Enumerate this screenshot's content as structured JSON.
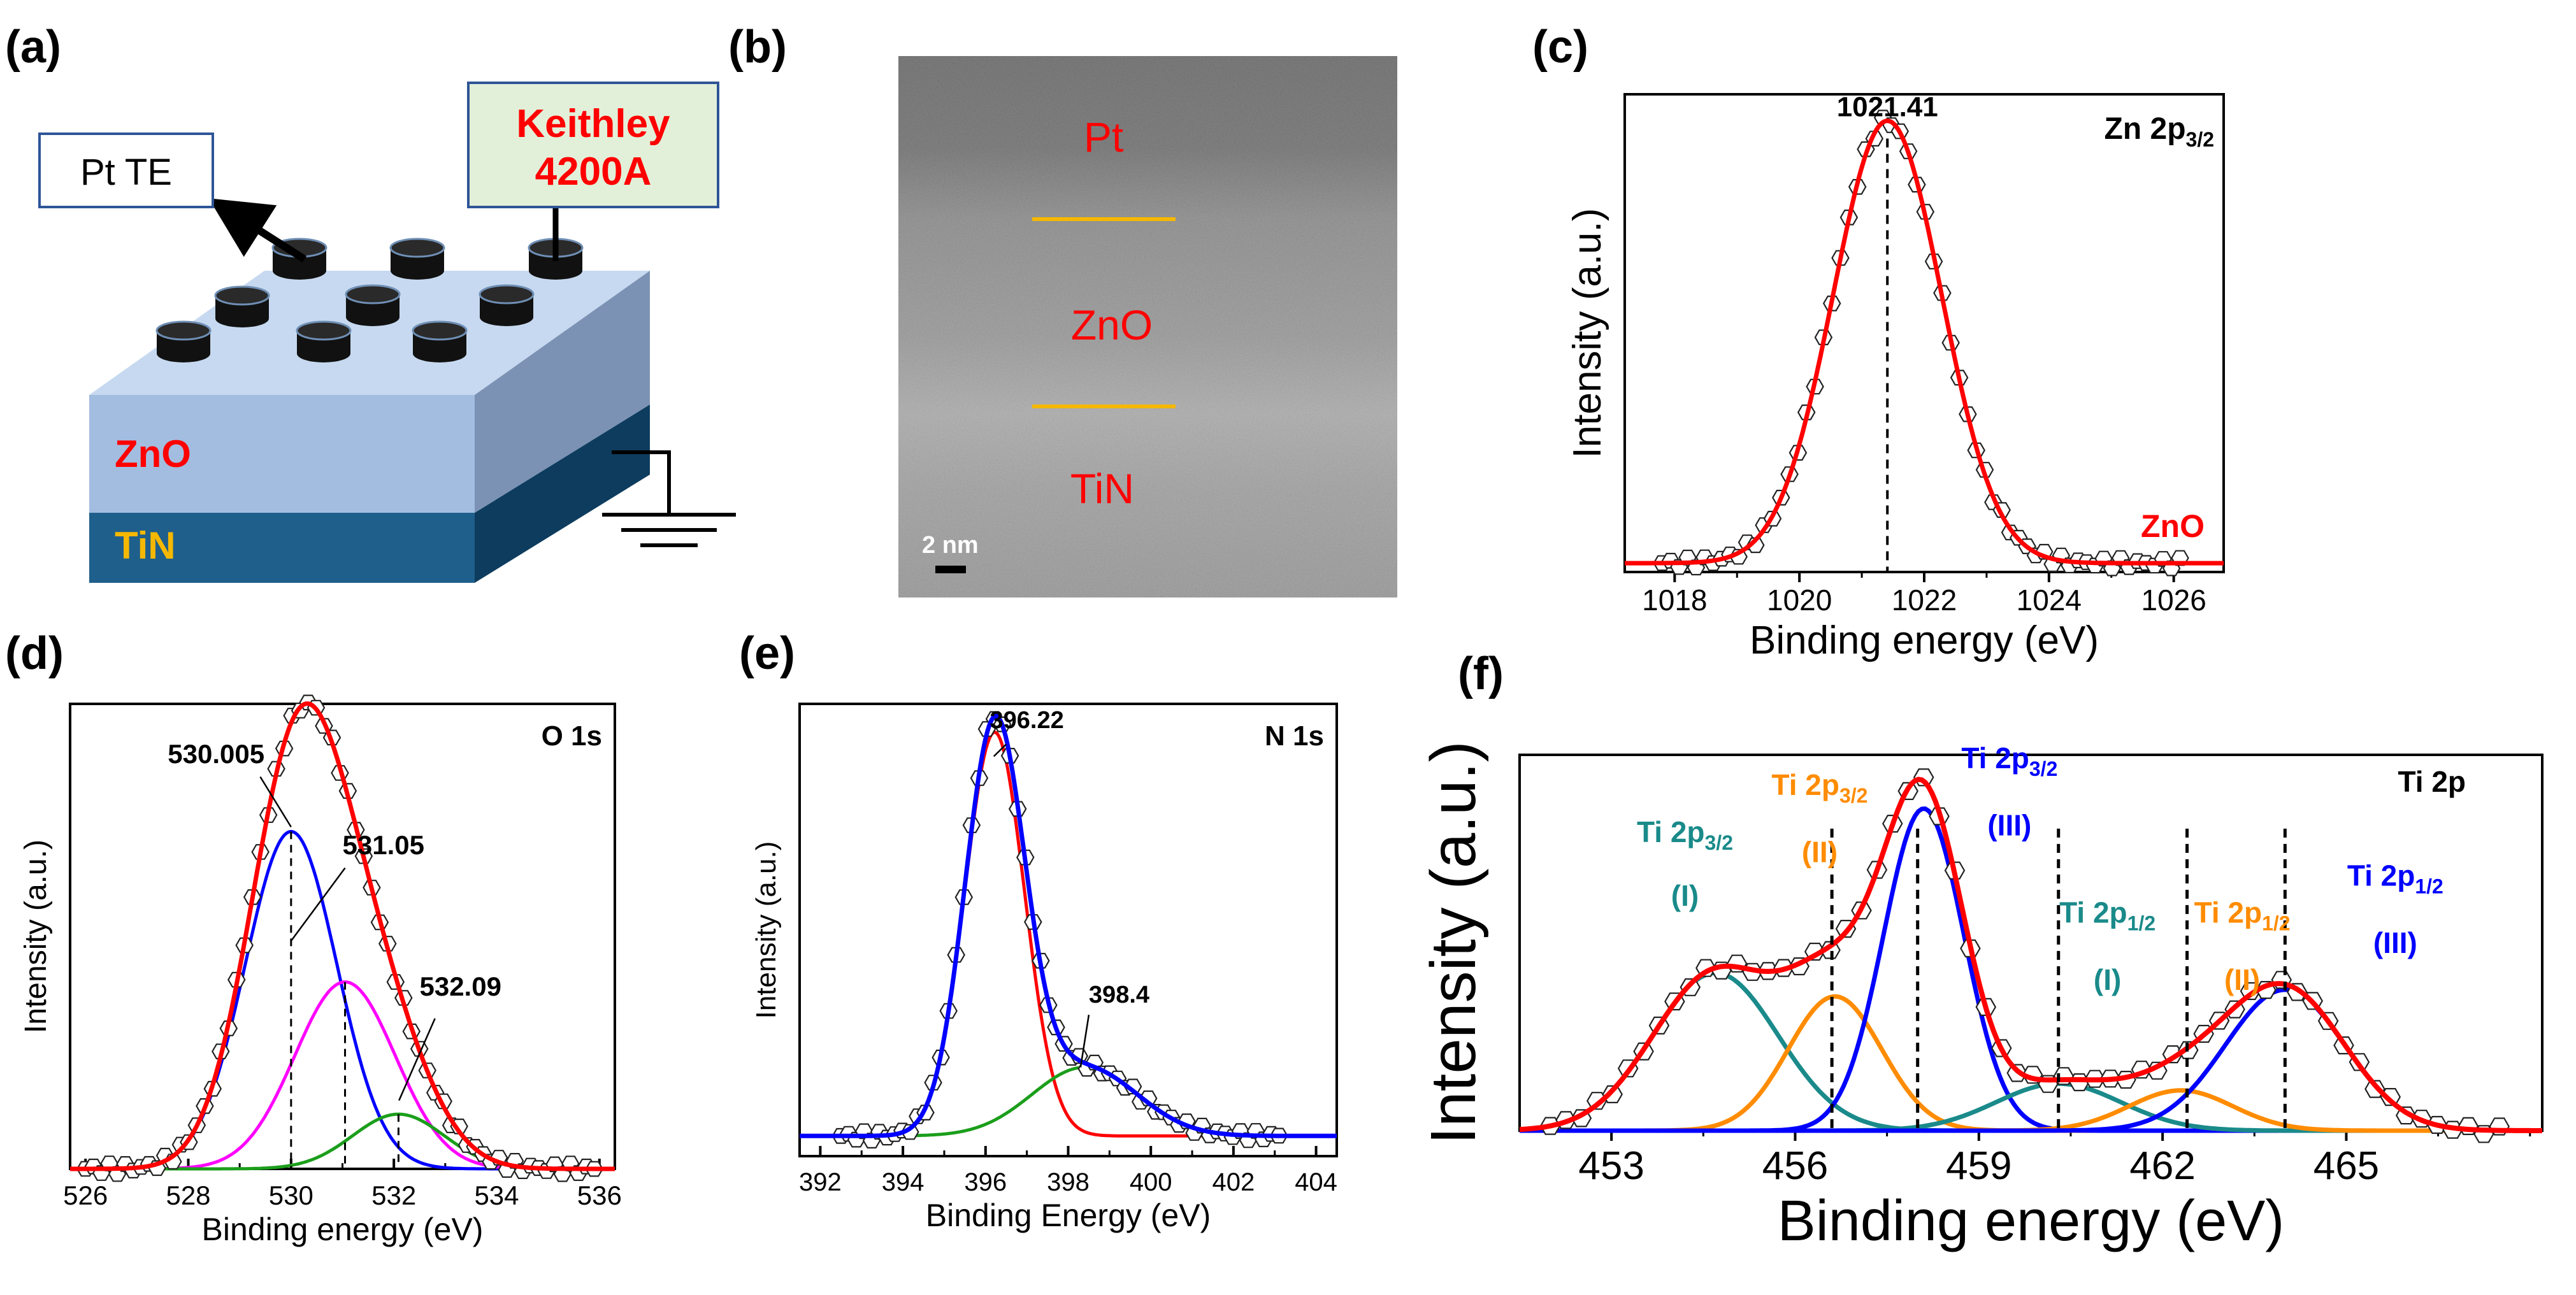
{
  "panel_labels": [
    "(a)",
    "(b)",
    "(c)",
    "(d)",
    "(e)",
    "(f)"
  ],
  "schematic": {
    "pt_te_label": "Pt TE",
    "keithley_line1": "Keithley",
    "keithley_line2": "4200A",
    "zno_label": "ZnO",
    "tin_label": "TiN"
  },
  "tem": {
    "pt_label": "Pt",
    "zno_label": "ZnO",
    "tin_label": "TiN",
    "scale_bar": "2 nm"
  },
  "colors": {
    "red": "#ff0000",
    "blue": "#0000ff",
    "magenta": "#ff00ff",
    "green": "#1b9e1b",
    "teal": "#1a8a8a",
    "orange": "#ff8c00",
    "gold": "#f5b800",
    "zno_side": "#aec6e6",
    "tin_side": "#1f5f8b",
    "box_fill": "#e2f0d9"
  },
  "chart_data": [
    {
      "id": "c",
      "type": "line",
      "title": "Zn 2p",
      "title_sub": "3/2",
      "sample_label": "ZnO",
      "xlabel": "Binding energy (eV)",
      "ylabel": "Intensity (a.u.)",
      "xlim": [
        1017.2,
        1026.8
      ],
      "ylim": [
        0,
        1.08
      ],
      "xticks": [
        "1018",
        "1020",
        "1022",
        "1024",
        "1026"
      ],
      "xtick_values": [
        1018,
        1020,
        1022,
        1024,
        1026
      ],
      "peak_annotation": "1021.41",
      "peak_position": 1021.41,
      "components": [
        {
          "name": "ZnO fit",
          "color": "#ff0000",
          "center": 1021.41,
          "amplitude": 1.0,
          "fwhm": 2.05,
          "shape": "gauss"
        }
      ],
      "envelope": {
        "color": "#ff0000",
        "baseline": 0.02
      },
      "markers": {
        "x_start": 1017.8,
        "x_end": 1026.1,
        "count": 62
      }
    },
    {
      "id": "d",
      "type": "line",
      "title": "O 1s",
      "xlabel": "Binding energy (eV)",
      "ylabel": "Intensity (a.u.)",
      "xlim": [
        525.7,
        536.3
      ],
      "ylim": [
        0,
        1.02
      ],
      "xticks": [
        "526",
        "528",
        "530",
        "532",
        "534",
        "536"
      ],
      "xtick_values": [
        526,
        528,
        530,
        532,
        534,
        536
      ],
      "components": [
        {
          "name": "530.005",
          "color": "#0000ff",
          "center": 530.0,
          "amplitude": 0.74,
          "fwhm": 2.1,
          "shape": "gauss"
        },
        {
          "name": "531.05",
          "color": "#ff00ff",
          "center": 531.05,
          "amplitude": 0.41,
          "fwhm": 2.3,
          "shape": "gauss"
        },
        {
          "name": "532.09",
          "color": "#1b9e1b",
          "center": 532.09,
          "amplitude": 0.12,
          "fwhm": 2.1,
          "shape": "gauss"
        }
      ],
      "envelope": {
        "color": "#ff0000",
        "baseline": 0.0
      },
      "annotations": [
        "530.005",
        "531.05",
        "532.09"
      ],
      "annotation_positions": [
        530.0,
        531.05,
        532.09
      ],
      "markers": {
        "x_start": 526.0,
        "x_end": 535.9,
        "count": 65
      }
    },
    {
      "id": "e",
      "type": "line",
      "title": "N 1s",
      "xlabel": "Binding Energy (eV)",
      "ylabel": "Intensity (a.u.)",
      "xlim": [
        391.5,
        404.5
      ],
      "ylim": [
        0,
        1.12
      ],
      "xticks": [
        "392",
        "394",
        "396",
        "398",
        "400",
        "402",
        "404"
      ],
      "xtick_values": [
        392,
        394,
        396,
        398,
        400,
        402,
        404
      ],
      "components": [
        {
          "name": "396.22",
          "color": "#ff0000",
          "center": 396.22,
          "amplitude": 1.0,
          "fwhm": 1.7,
          "shape": "gauss"
        },
        {
          "name": "398.4",
          "color": "#1b9e1b",
          "center": 398.4,
          "amplitude": 0.17,
          "fwhm": 3.0,
          "shape": "gauss"
        }
      ],
      "envelope": {
        "color": "#0000ff",
        "baseline": 0.05
      },
      "annotations": [
        "396.22",
        "398.4"
      ],
      "annotation_positions": [
        396.22,
        398.4
      ],
      "markers": {
        "x_start": 392.5,
        "x_end": 403.1,
        "count": 58
      }
    },
    {
      "id": "f",
      "type": "line",
      "title": "Ti 2p",
      "xlabel": "Binding energy (eV)",
      "ylabel": "Intensity (a.u.)",
      "xlim": [
        451.5,
        468.2
      ],
      "ylim": [
        0,
        1.12
      ],
      "xticks": [
        "453",
        "456",
        "459",
        "462",
        "465"
      ],
      "xtick_values": [
        453,
        456,
        459,
        462,
        465
      ],
      "components": [
        {
          "name": "Ti 2p3/2 (I)",
          "color": "#1a8a8a",
          "center": 454.7,
          "amplitude": 0.47,
          "fwhm": 2.4,
          "shape": "gauss"
        },
        {
          "name": "Ti 2p3/2 (II)",
          "color": "#ff8c00",
          "center": 456.65,
          "amplitude": 0.4,
          "fwhm": 1.8,
          "shape": "gauss"
        },
        {
          "name": "Ti 2p3/2 (III)",
          "color": "#0000ff",
          "center": 458.1,
          "amplitude": 0.96,
          "fwhm": 1.55,
          "shape": "gauss"
        },
        {
          "name": "Ti 2p1/2 (I)",
          "color": "#1a8a8a",
          "center": 460.3,
          "amplitude": 0.14,
          "fwhm": 2.4,
          "shape": "gauss"
        },
        {
          "name": "Ti 2p1/2 (II)",
          "color": "#ff8c00",
          "center": 462.3,
          "amplitude": 0.12,
          "fwhm": 2.0,
          "shape": "gauss"
        },
        {
          "name": "Ti 2p1/2 (III)",
          "color": "#0000ff",
          "center": 464.0,
          "amplitude": 0.42,
          "fwhm": 2.3,
          "shape": "gauss"
        }
      ],
      "envelope": {
        "color": "#ff0000",
        "baseline": 0.0
      },
      "dashed_lines": [
        456.6,
        458.0,
        460.3,
        462.4,
        464.0
      ],
      "peak_labels": [
        {
          "main": "Ti 2p",
          "sub": "3/2",
          "state": "(I)",
          "color": "#1a8a8a"
        },
        {
          "main": "Ti 2p",
          "sub": "3/2",
          "state": "(II)",
          "color": "#ff8c00"
        },
        {
          "main": "Ti 2p",
          "sub": "3/2",
          "state": "(III)",
          "color": "#0000ff"
        },
        {
          "main": "Ti 2p",
          "sub": "1/2",
          "state": "(I)",
          "color": "#1a8a8a"
        },
        {
          "main": "Ti 2p",
          "sub": "1/2",
          "state": "(II)",
          "color": "#ff8c00"
        },
        {
          "main": "Ti 2p",
          "sub": "1/2",
          "state": "(III)",
          "color": "#0000ff"
        }
      ],
      "markers": {
        "x_start": 452.0,
        "x_end": 467.5,
        "count": 62
      }
    }
  ]
}
